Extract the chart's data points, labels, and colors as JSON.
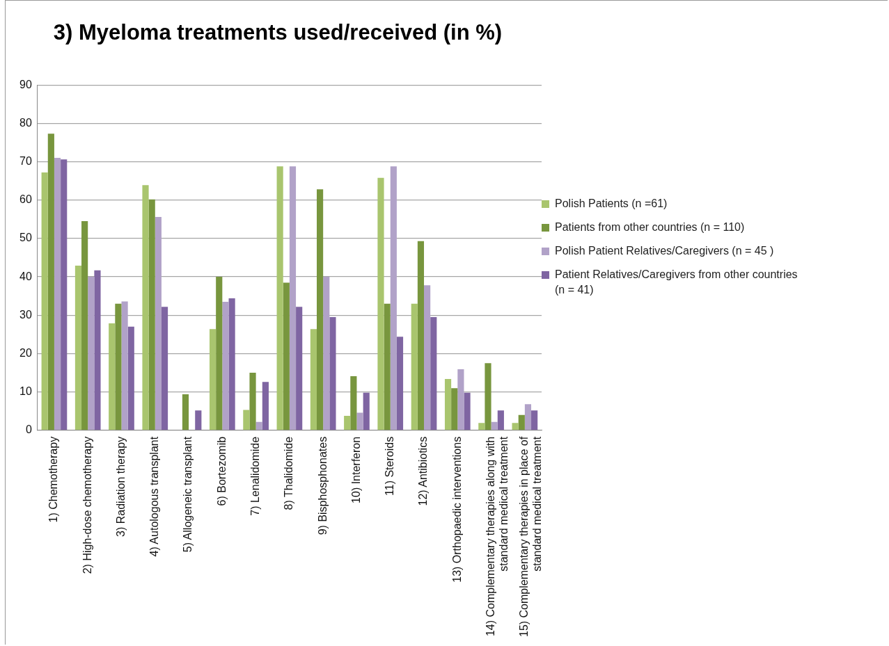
{
  "chart_data": {
    "type": "bar",
    "title": "3) Myeloma treatments used/received (in %)",
    "categories": [
      "1) Chemotherapy",
      "2) High-dose chemotherapy",
      "3) Radiation therapy",
      "4) Autologous transplant",
      "5) Allogeneic transplant",
      "6) Bortezomib",
      "7) Lenalidomide",
      "8) Thalidomide",
      "9) Bisphosphonates",
      "10) Interferon",
      "11) Steroids",
      "12) Antibiotics",
      "13) Orthopaedic interventions",
      "14) Complementary therapies along with standard medical treatment",
      "15) Complementary therapies in place of standard medical treatment"
    ],
    "series": [
      {
        "name": "Polish Patients (n =61)",
        "color": "#a9c56e",
        "values": [
          67.2,
          42.9,
          27.9,
          63.9,
          0,
          26.4,
          5.3,
          68.8,
          26.4,
          3.8,
          65.8,
          33,
          13.4,
          1.9,
          1.9
        ]
      },
      {
        "name": "Patients from other countries (n = 110)",
        "color": "#78963e",
        "values": [
          77.3,
          54.5,
          33,
          60.2,
          9.4,
          40,
          15,
          38.5,
          62.8,
          14.1,
          33,
          49.3,
          11,
          17.5,
          4
        ]
      },
      {
        "name": "Polish Patient Relatives/Caregivers (n = 45 )",
        "color": "#b1a2c8",
        "values": [
          71,
          40,
          33.6,
          55.6,
          0,
          33.5,
          2.2,
          68.8,
          40,
          4.6,
          68.8,
          37.8,
          15.9,
          2.2,
          6.8
        ]
      },
      {
        "name": "Patient Relatives/Caregivers from other countries (n = 41)",
        "color": "#7f65a2",
        "values": [
          70.6,
          41.7,
          27,
          32.2,
          5.2,
          34.4,
          12.6,
          32.2,
          29.5,
          9.8,
          24.4,
          29.5,
          9.8,
          5.2,
          5.2
        ]
      }
    ],
    "ylim": [
      0,
      90
    ],
    "yticks": [
      0,
      10,
      20,
      30,
      40,
      50,
      60,
      70,
      80,
      90
    ],
    "grid": "y",
    "legend": "right"
  }
}
